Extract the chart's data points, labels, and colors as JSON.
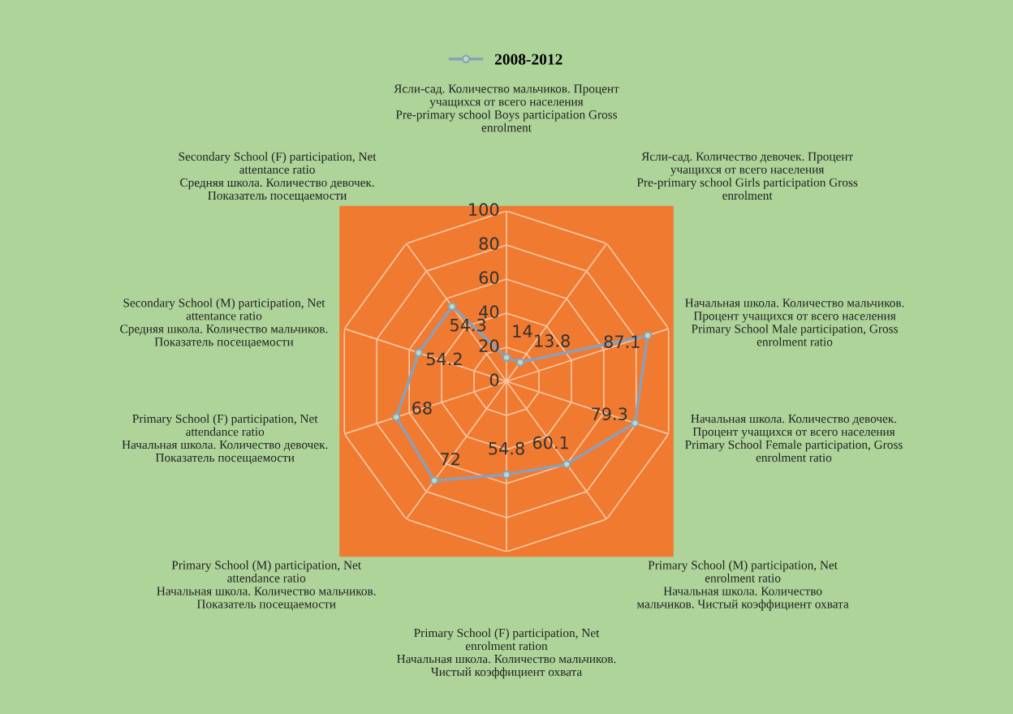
{
  "chart_data": {
    "type": "radar",
    "categories": [
      "Ясли-сад. Количество мальчиков. Процент\nучащихся от всего населения\nPre-primary school Boys participation Gross\nenrolment",
      "Ясли-сад. Количество девочек. Процент\nучащихся от всего населения\nPre-primary school Girls participation Gross\nenrolment",
      "Начальная школа. Количество мальчиков.\nПроцент учащихся от всего населения\nPrimary School Male participation, Gross\nenrolment ratio",
      "Начальная школа. Количество девочек.\nПроцент учащихся от всего населения\nPrimary School Female participation, Gross\nenrolment ratio",
      "Primary School (M) participation, Net\nenrolment ratio\nНачальная школа. Количество\nмальчиков. Чистый коэффициент охвата",
      "Primary School (F) participation, Net\nenrolment ration\nНачальная школа. Количество мальчиков.\nЧистый коэффициент охвата",
      "Primary School (M) participation, Net\nattendance ratio\nНачальная школа. Количество мальчиков.\nПоказатель посещаемости",
      "Primary School (F) participation, Net\nattendance ratio\nНачальная школа. Количество девочек.\nПоказатель посещаемости",
      "Secondary School (M) participation, Net\nattentance ratio\nСредняя школа. Количество мальчиков.\nПоказатель посещаемости",
      "Secondary School (F) participation, Net\nattentance ratio\nСредняя школа. Количество девочек.\nПоказатель посещаемости"
    ],
    "series": [
      {
        "name": "2008-2012",
        "color": "#8c9fb8",
        "values": [
          14,
          13.8,
          87.1,
          79.3,
          60.1,
          54.8,
          72,
          68,
          54.2,
          54.3
        ]
      }
    ],
    "ylim": [
      0,
      100
    ],
    "yticks": [
      0,
      20,
      40,
      60,
      80,
      100
    ],
    "grid": true,
    "legend": "top",
    "marker": "circle",
    "line_style": "solid",
    "data_labels": true
  }
}
